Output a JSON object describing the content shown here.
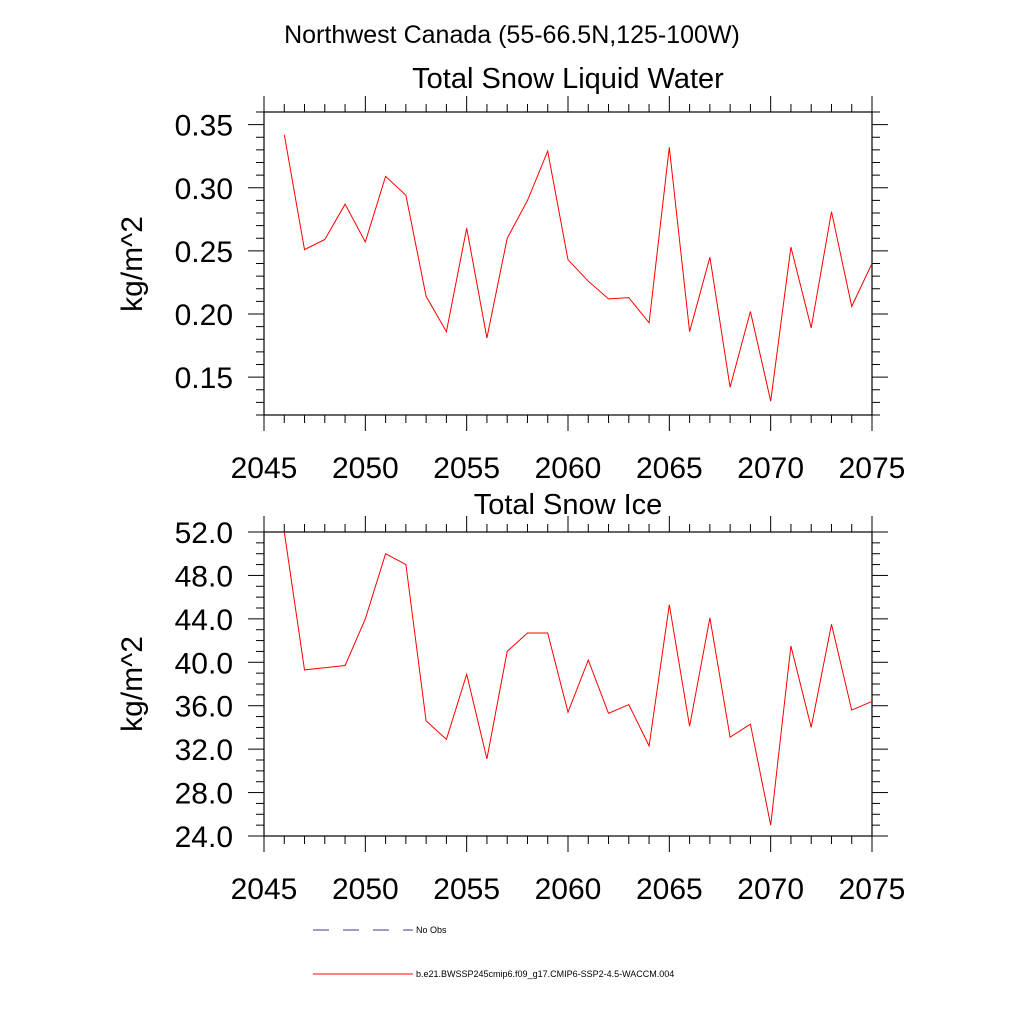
{
  "figure": {
    "suptitle": "Northwest Canada (55-66.5N,125-100W)"
  },
  "legend": {
    "items": [
      {
        "label": "No Obs",
        "style": "dashed",
        "color": "#3a3a8c"
      },
      {
        "label": "b.e21.BWSSP245cmip6.f09_g17.CMIP6-SSP2-4.5-WACCM.004",
        "style": "solid",
        "color": "#ff0000"
      }
    ]
  },
  "chart_data": [
    {
      "type": "line",
      "title": "Total Snow Liquid Water",
      "ylabel": "kg/m^2",
      "xlabel": "",
      "xlim": [
        2045,
        2075
      ],
      "ylim": [
        0.12,
        0.36
      ],
      "xticks": [
        "2045",
        "2050",
        "2055",
        "2060",
        "2065",
        "2070",
        "2075"
      ],
      "yticks": [
        "0.15",
        "0.20",
        "0.25",
        "0.30",
        "0.35"
      ],
      "grid": false,
      "series": [
        {
          "name": "b.e21.BWSSP245cmip6.f09_g17.CMIP6-SSP2-4.5-WACCM.004",
          "color": "#ff0000",
          "x": [
            2046,
            2047,
            2048,
            2049,
            2050,
            2051,
            2052,
            2053,
            2054,
            2055,
            2056,
            2057,
            2058,
            2059,
            2060,
            2061,
            2062,
            2063,
            2064,
            2065,
            2066,
            2067,
            2068,
            2069,
            2070,
            2071,
            2072,
            2073,
            2074,
            2075
          ],
          "y": [
            0.342,
            0.251,
            0.259,
            0.287,
            0.257,
            0.309,
            0.294,
            0.214,
            0.186,
            0.268,
            0.181,
            0.26,
            0.29,
            0.329,
            0.243,
            0.226,
            0.212,
            0.213,
            0.193,
            0.332,
            0.186,
            0.245,
            0.142,
            0.202,
            0.131,
            0.253,
            0.189,
            0.281,
            0.206,
            0.24
          ]
        }
      ]
    },
    {
      "type": "line",
      "title": "Total Snow Ice",
      "ylabel": "kg/m^2",
      "xlabel": "",
      "xlim": [
        2045,
        2075
      ],
      "ylim": [
        24.0,
        52.0
      ],
      "xticks": [
        "2045",
        "2050",
        "2055",
        "2060",
        "2065",
        "2070",
        "2075"
      ],
      "yticks": [
        "24.0",
        "28.0",
        "32.0",
        "36.0",
        "40.0",
        "44.0",
        "48.0",
        "52.0"
      ],
      "grid": false,
      "series": [
        {
          "name": "b.e21.BWSSP245cmip6.f09_g17.CMIP6-SSP2-4.5-WACCM.004",
          "color": "#ff0000",
          "x": [
            2046,
            2047,
            2048,
            2049,
            2050,
            2051,
            2052,
            2053,
            2054,
            2055,
            2056,
            2057,
            2058,
            2059,
            2060,
            2061,
            2062,
            2063,
            2064,
            2065,
            2066,
            2067,
            2068,
            2069,
            2070,
            2071,
            2072,
            2073,
            2074,
            2075
          ],
          "y": [
            52.0,
            39.3,
            39.5,
            39.7,
            44.0,
            50.0,
            49.0,
            34.6,
            32.9,
            38.9,
            31.1,
            41.0,
            42.7,
            42.7,
            35.4,
            40.2,
            35.3,
            36.1,
            32.3,
            45.3,
            34.1,
            44.1,
            33.1,
            34.3,
            25.0,
            41.5,
            34.0,
            43.5,
            35.6,
            36.4
          ]
        }
      ]
    }
  ]
}
